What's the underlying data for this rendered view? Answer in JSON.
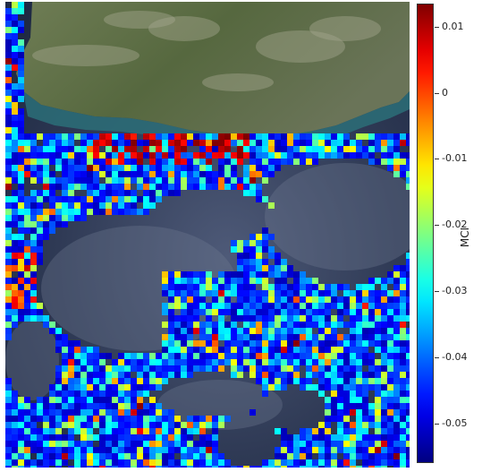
{
  "colorbar": {
    "label": "MCI",
    "ticks": [
      {
        "value": 0.01,
        "text": "0.01"
      },
      {
        "value": 0,
        "text": "0"
      },
      {
        "value": -0.01,
        "text": "-0.01"
      },
      {
        "value": -0.02,
        "text": "-0.02"
      },
      {
        "value": -0.03,
        "text": "-0.03"
      },
      {
        "value": -0.04,
        "text": "-0.04"
      },
      {
        "value": -0.05,
        "text": "-0.05"
      }
    ],
    "range": [
      -0.056,
      0.0135
    ],
    "colormap": "jet"
  },
  "map": {
    "basemap": "satellite imagery",
    "colors": {
      "land": "#5f7048",
      "ocean": "#2f3a55",
      "cloud": "#55607a"
    }
  }
}
